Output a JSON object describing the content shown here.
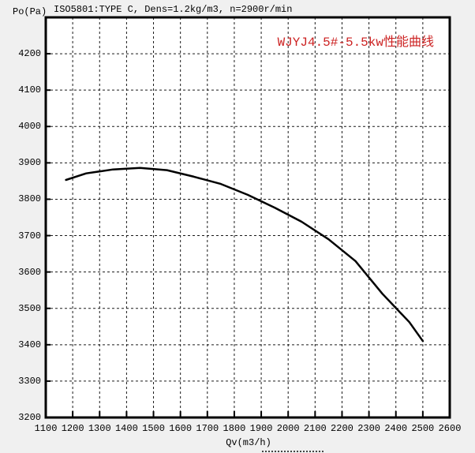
{
  "window": {
    "background_color": "#f0f0f0",
    "plot_background_color": "#ffffff",
    "border_color": "#000000"
  },
  "header": {
    "conditions": "ISO5801:TYPE C, Dens=1.2kg/m3, n=2900r/min",
    "y_axis_unit": "Po(Pa)"
  },
  "chart_data": {
    "type": "line",
    "title": "WJYJ4.5#-5.5kw性能曲线",
    "title_color": "#cc2222",
    "xlabel": "Qv(m3/h)",
    "ylabel": "Po(Pa)",
    "xlim": [
      1100,
      2600
    ],
    "ylim": [
      3200,
      4300
    ],
    "x_ticks": [
      1100,
      1200,
      1300,
      1400,
      1500,
      1600,
      1700,
      1800,
      1900,
      2000,
      2100,
      2200,
      2300,
      2400,
      2500,
      2600
    ],
    "y_ticks": [
      3200,
      3300,
      3400,
      3500,
      3600,
      3700,
      3800,
      3900,
      4000,
      4100,
      4200
    ],
    "grid": "dashed",
    "legend_position": "none",
    "curve_color": "#000000",
    "series": [
      {
        "name": "WJYJ4.5#-5.5kw",
        "x": [
          1175,
          1250,
          1350,
          1450,
          1550,
          1650,
          1750,
          1850,
          1950,
          2050,
          2150,
          2250,
          2350,
          2450,
          2500
        ],
        "y": [
          3853,
          3871,
          3882,
          3886,
          3880,
          3862,
          3842,
          3812,
          3777,
          3738,
          3690,
          3630,
          3540,
          3462,
          3410
        ]
      }
    ]
  }
}
